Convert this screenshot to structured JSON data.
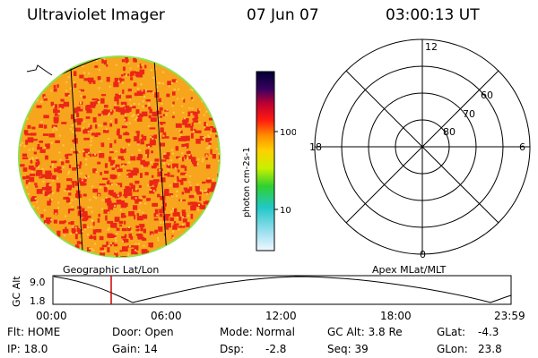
{
  "header": {
    "title": "Ultraviolet Imager",
    "date": "07 Jun 07",
    "time": "03:00:13 UT"
  },
  "colorbar": {
    "unit_label": "photon cm-2s-1",
    "ticks": [
      "100",
      "10"
    ]
  },
  "polar": {
    "mlt_labels": [
      "12",
      "18",
      "6",
      "0"
    ],
    "lat_labels": [
      "60",
      "70",
      "80"
    ]
  },
  "timeline": {
    "left_label": "Geographic Lat/Lon",
    "right_label": "Apex MLat/MLT",
    "axis_title": "GC Alt",
    "y_ticks": [
      "9.0",
      "1.8"
    ],
    "x_ticks": [
      "00:00",
      "06:00",
      "12:00",
      "18:00",
      "23:59"
    ],
    "marker_time": "03:00",
    "marker_color": "#cc0000"
  },
  "status": {
    "flt": "Flt: HOME",
    "door": "Door: Open",
    "mode": "Mode: Normal",
    "gc_alt": "GC Alt: 3.8 Re",
    "glat": "GLat:",
    "glat_val": "-4.3",
    "ip": "IP: 18.0",
    "gain": "Gain: 14",
    "dsp": "Dsp:",
    "dsp_val": "-2.8",
    "seq": "Seq: 39",
    "glon": "GLon:",
    "glon_val": "23.8"
  },
  "colors": {
    "disk_base": "#f7a51c",
    "disk_speckle": "#ec2617",
    "limb": "#8fe04f"
  }
}
